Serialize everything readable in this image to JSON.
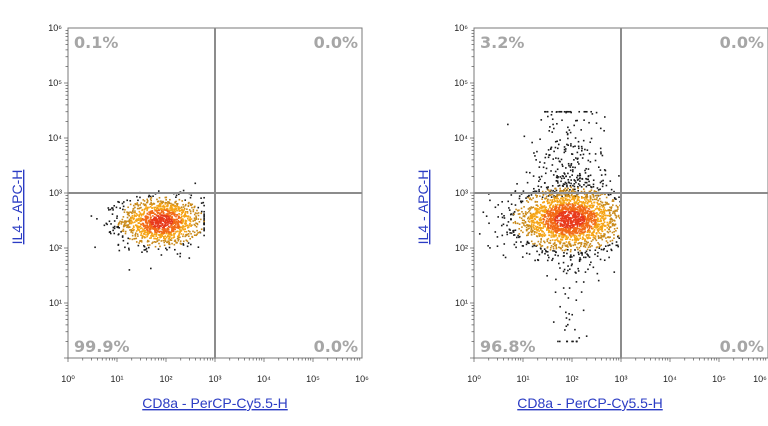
{
  "chart_data": [
    {
      "type": "scatter",
      "title": "",
      "xlabel": "CD8a - PerCP-Cy5.5-H",
      "ylabel": "IL4 - APC-H",
      "xscale": "log",
      "yscale": "log",
      "xlim": [
        1,
        1000000
      ],
      "ylim": [
        1,
        1000000
      ],
      "x_tick_labels": [
        "10⁰",
        "10¹",
        "10²",
        "10³",
        "10⁴",
        "10⁵",
        "10⁶"
      ],
      "y_tick_labels": [
        "10¹",
        "10²",
        "10³",
        "10⁴",
        "10⁵",
        "10⁶"
      ],
      "quadrant_gate": {
        "x": 1000,
        "y": 1000
      },
      "quadrants": {
        "upper_left": "0.1%",
        "upper_right": "0.0%",
        "lower_left": "99.9%",
        "lower_right": "0.0%"
      },
      "population": {
        "center": {
          "x": 80,
          "y": 300
        },
        "x_range": [
          3,
          600
        ],
        "y_range": [
          40,
          1500
        ]
      },
      "colors": {
        "gate_line": "#8c8c8c",
        "density_high": "#e83a1c",
        "density_mid": "#f5a416",
        "density_low": "#1a1a1a",
        "percentage": "#a6a6a6",
        "axis_title": "#2b3cc4"
      }
    },
    {
      "type": "scatter",
      "title": "",
      "xlabel": "CD8a - PerCP-Cy5.5-H",
      "ylabel": "IL4 - APC-H",
      "xscale": "log",
      "yscale": "log",
      "xlim": [
        1,
        1000000
      ],
      "ylim": [
        1,
        1000000
      ],
      "x_tick_labels": [
        "10⁰",
        "10¹",
        "10²",
        "10³",
        "10⁴",
        "10⁵",
        "10⁶"
      ],
      "y_tick_labels": [
        "10¹",
        "10²",
        "10³",
        "10⁴",
        "10⁵",
        "10⁶"
      ],
      "quadrant_gate": {
        "x": 1000,
        "y": 1000
      },
      "quadrants": {
        "upper_left": "3.2%",
        "upper_right": "0.0%",
        "lower_left": "96.8%",
        "lower_right": "0.0%"
      },
      "population": {
        "center": {
          "x": 90,
          "y": 330
        },
        "x_range": [
          1,
          1000
        ],
        "y_range": [
          2,
          30000
        ]
      },
      "colors": {
        "gate_line": "#8c8c8c",
        "density_high": "#e83a1c",
        "density_mid": "#f5a416",
        "density_low": "#1a1a1a",
        "percentage": "#a6a6a6",
        "axis_title": "#2b3cc4"
      }
    }
  ]
}
